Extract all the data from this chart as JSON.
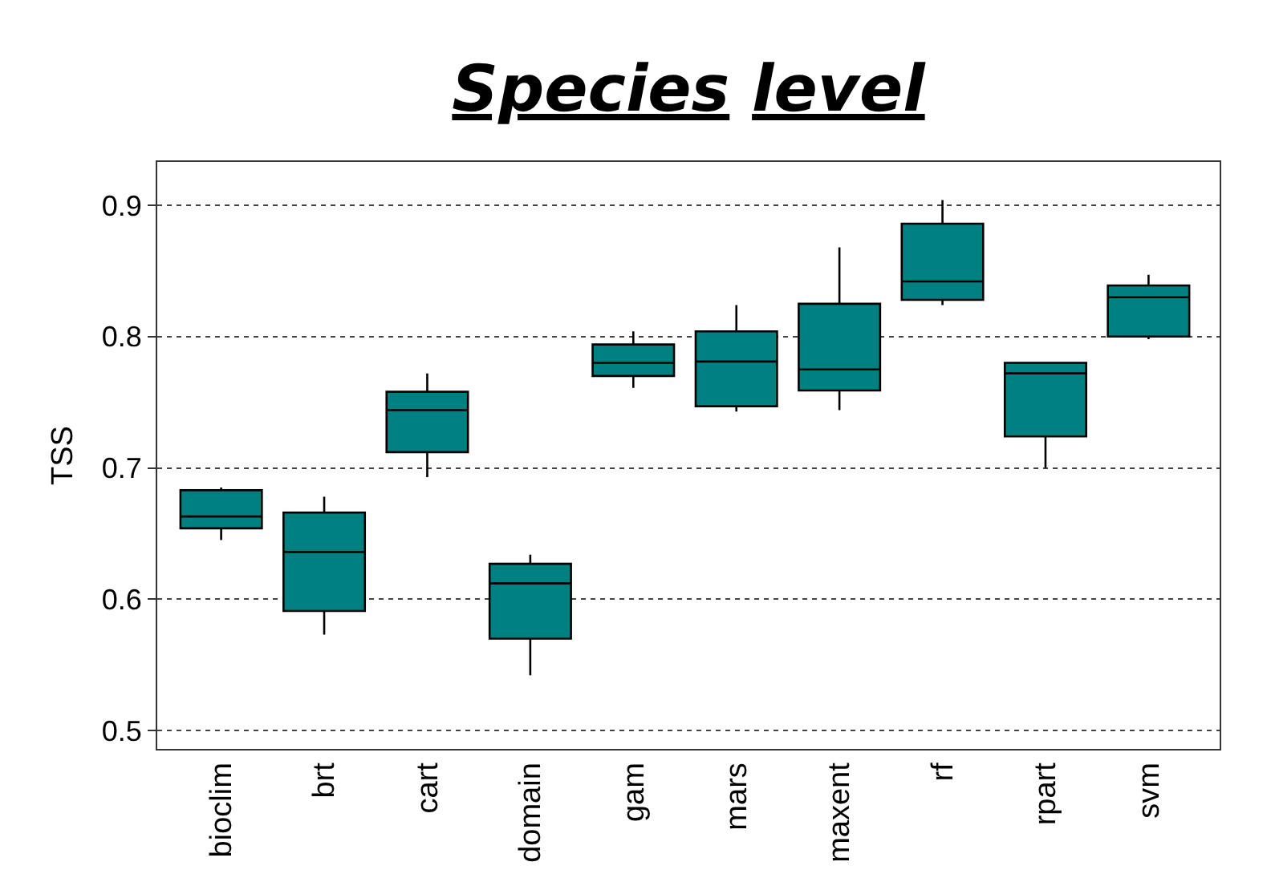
{
  "chart_data": {
    "type": "box",
    "title": "Species level",
    "ylabel": "TSS",
    "categories": [
      "bioclim",
      "brt",
      "cart",
      "domain",
      "gam",
      "mars",
      "maxent",
      "rf",
      "rpart",
      "svm"
    ],
    "series": [
      {
        "color": "#008080",
        "boxes": [
          {
            "low": 0.645,
            "q1": 0.654,
            "median": 0.663,
            "q3": 0.683,
            "high": 0.685
          },
          {
            "low": 0.573,
            "q1": 0.591,
            "median": 0.636,
            "q3": 0.666,
            "high": 0.678
          },
          {
            "low": 0.693,
            "q1": 0.712,
            "median": 0.744,
            "q3": 0.758,
            "high": 0.772
          },
          {
            "low": 0.542,
            "q1": 0.57,
            "median": 0.612,
            "q3": 0.627,
            "high": 0.634
          },
          {
            "low": 0.761,
            "q1": 0.77,
            "median": 0.78,
            "q3": 0.794,
            "high": 0.804
          },
          {
            "low": 0.743,
            "q1": 0.747,
            "median": 0.781,
            "q3": 0.804,
            "high": 0.824
          },
          {
            "low": 0.744,
            "q1": 0.759,
            "median": 0.775,
            "q3": 0.825,
            "high": 0.868
          },
          {
            "low": 0.824,
            "q1": 0.828,
            "median": 0.842,
            "q3": 0.886,
            "high": 0.904
          },
          {
            "low": 0.7,
            "q1": 0.724,
            "median": 0.772,
            "q3": 0.78,
            "high": 0.78
          },
          {
            "low": 0.798,
            "q1": 0.8,
            "median": 0.83,
            "q3": 0.839,
            "high": 0.847
          }
        ]
      }
    ],
    "ylim": [
      0.486,
      0.933
    ],
    "yticks": [
      0.5,
      0.6,
      0.7,
      0.8,
      0.9
    ],
    "grid": "y"
  }
}
